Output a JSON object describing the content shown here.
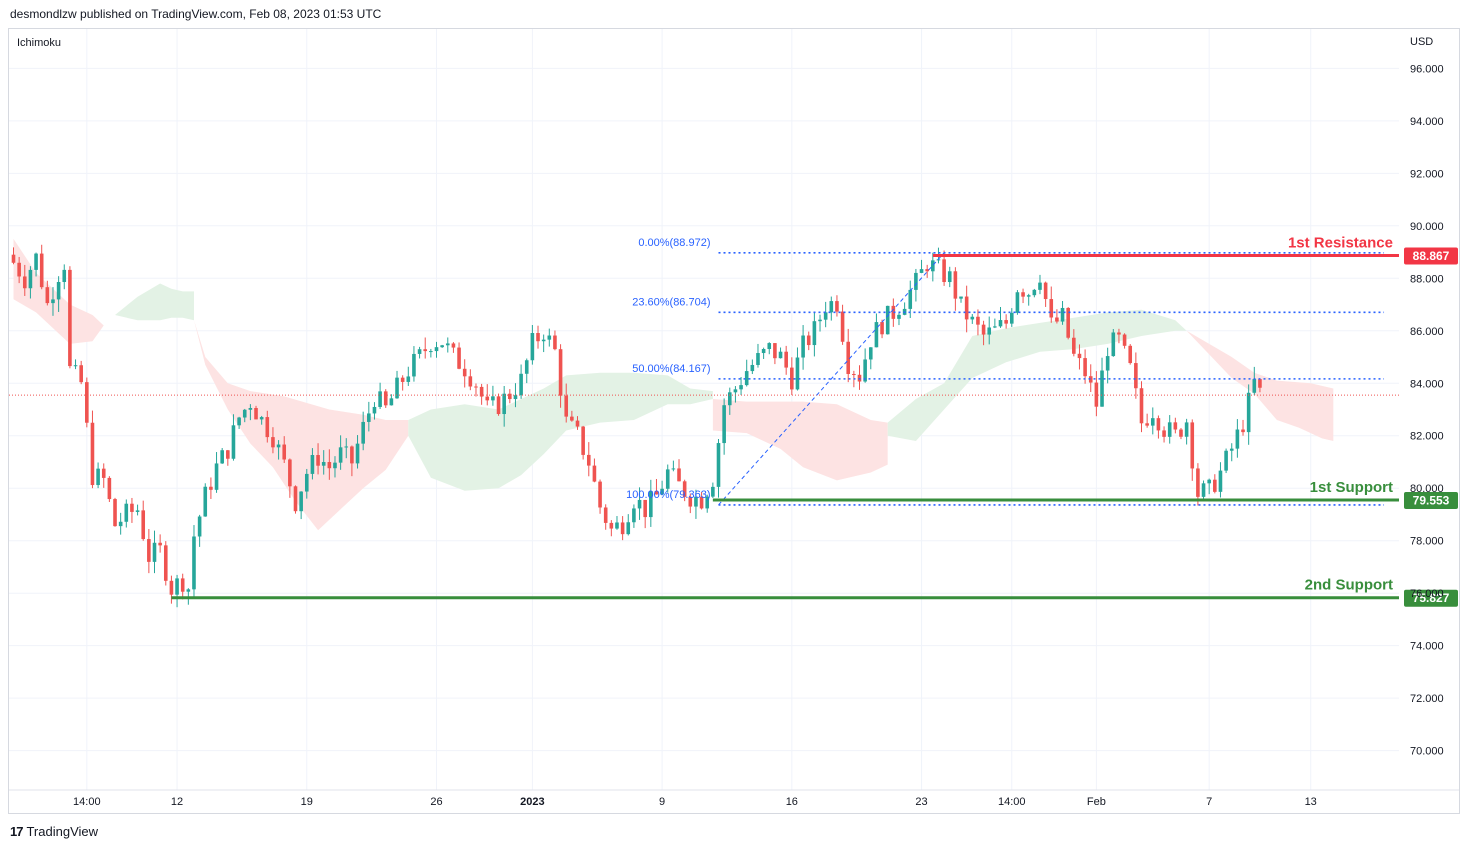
{
  "header": {
    "publish_line": "desmondlzw published on TradingView.com, Feb 08, 2023 01:53 UTC"
  },
  "footer": {
    "logo_glyph": "17",
    "brand": "TradingView"
  },
  "colors": {
    "bull": "#26a69a",
    "bear": "#ef5350",
    "resistance": "#f23645",
    "support": "#388e3c",
    "fib": "#2962ff",
    "cloud_green": "#e3f2e5",
    "cloud_red": "#fde3e3",
    "grid": "#f0f3fa"
  },
  "chart_data": {
    "type": "candlestick",
    "indicator_label": "Ichimoku",
    "currency_label": "USD",
    "y_range": [
      68.5,
      97.5
    ],
    "y_ticks": [
      "70.000",
      "72.000",
      "74.000",
      "76.000",
      "78.000",
      "80.000",
      "82.000",
      "84.000",
      "86.000",
      "88.000",
      "90.000",
      "92.000",
      "94.000",
      "96.000"
    ],
    "x_ticks": [
      {
        "label": "14:00",
        "i": 13,
        "bold": false
      },
      {
        "label": "12",
        "i": 29,
        "bold": false
      },
      {
        "label": "19",
        "i": 52,
        "bold": false
      },
      {
        "label": "26",
        "i": 75,
        "bold": false
      },
      {
        "label": "2023",
        "i": 92,
        "bold": true
      },
      {
        "label": "9",
        "i": 115,
        "bold": false
      },
      {
        "label": "16",
        "i": 138,
        "bold": false
      },
      {
        "label": "23",
        "i": 161,
        "bold": false
      },
      {
        "label": "14:00",
        "i": 177,
        "bold": false
      },
      {
        "label": "Feb",
        "i": 192,
        "bold": false
      },
      {
        "label": "7",
        "i": 212,
        "bold": false
      },
      {
        "label": "13",
        "i": 230,
        "bold": false
      }
    ],
    "anchors": [
      [
        0,
        88.6
      ],
      [
        2,
        88.0
      ],
      [
        4,
        88.8
      ],
      [
        6,
        87.0
      ],
      [
        8,
        88.2
      ],
      [
        9,
        88.6
      ],
      [
        10,
        84.5
      ],
      [
        12,
        84.0
      ],
      [
        14,
        80.5
      ],
      [
        16,
        80.3
      ],
      [
        18,
        78.6
      ],
      [
        20,
        79.0
      ],
      [
        22,
        79.2
      ],
      [
        24,
        77.4
      ],
      [
        26,
        77.6
      ],
      [
        28,
        76.2
      ],
      [
        30,
        76.5
      ],
      [
        31,
        76.2
      ],
      [
        32,
        78.2
      ],
      [
        34,
        79.7
      ],
      [
        36,
        80.8
      ],
      [
        38,
        81.5
      ],
      [
        40,
        82.7
      ],
      [
        42,
        83.3
      ],
      [
        44,
        82.6
      ],
      [
        46,
        82.0
      ],
      [
        48,
        80.9
      ],
      [
        50,
        79.5
      ],
      [
        52,
        80.6
      ],
      [
        54,
        81.2
      ],
      [
        56,
        80.8
      ],
      [
        58,
        81.3
      ],
      [
        60,
        81.0
      ],
      [
        62,
        82.3
      ],
      [
        64,
        83.5
      ],
      [
        66,
        83.0
      ],
      [
        68,
        83.8
      ],
      [
        70,
        84.5
      ],
      [
        72,
        85.0
      ],
      [
        74,
        85.6
      ],
      [
        76,
        85.6
      ],
      [
        78,
        85.0
      ],
      [
        80,
        84.6
      ],
      [
        82,
        84.0
      ],
      [
        84,
        83.0
      ],
      [
        86,
        83.2
      ],
      [
        88,
        83.6
      ],
      [
        90,
        84.1
      ],
      [
        92,
        85.5
      ],
      [
        94,
        86.0
      ],
      [
        96,
        85.2
      ],
      [
        98,
        82.5
      ],
      [
        100,
        82.0
      ],
      [
        102,
        81.0
      ],
      [
        104,
        79.3
      ],
      [
        106,
        78.4
      ],
      [
        108,
        78.7
      ],
      [
        110,
        79.6
      ],
      [
        112,
        79.2
      ],
      [
        114,
        79.7
      ],
      [
        116,
        80.6
      ],
      [
        118,
        80.1
      ],
      [
        120,
        79.7
      ],
      [
        122,
        79.6
      ],
      [
        124,
        80.4
      ],
      [
        126,
        83.2
      ],
      [
        128,
        83.8
      ],
      [
        130,
        84.5
      ],
      [
        132,
        84.9
      ],
      [
        134,
        85.3
      ],
      [
        136,
        85.0
      ],
      [
        138,
        84.2
      ],
      [
        140,
        85.4
      ],
      [
        142,
        86.0
      ],
      [
        144,
        87.0
      ],
      [
        146,
        87.1
      ],
      [
        148,
        84.8
      ],
      [
        150,
        84.3
      ],
      [
        152,
        85.7
      ],
      [
        154,
        86.3
      ],
      [
        156,
        86.7
      ],
      [
        158,
        87.2
      ],
      [
        160,
        87.8
      ],
      [
        162,
        88.6
      ],
      [
        164,
        88.3
      ],
      [
        166,
        88.0
      ],
      [
        168,
        86.9
      ],
      [
        170,
        86.3
      ],
      [
        172,
        85.8
      ],
      [
        174,
        86.0
      ],
      [
        176,
        86.3
      ],
      [
        178,
        87.7
      ],
      [
        180,
        87.5
      ],
      [
        182,
        88.2
      ],
      [
        184,
        86.2
      ],
      [
        186,
        86.5
      ],
      [
        188,
        85.0
      ],
      [
        190,
        84.4
      ],
      [
        192,
        83.2
      ],
      [
        194,
        85.4
      ],
      [
        196,
        85.6
      ],
      [
        198,
        84.5
      ],
      [
        200,
        82.5
      ],
      [
        202,
        83.0
      ],
      [
        204,
        82.3
      ],
      [
        206,
        82.0
      ],
      [
        208,
        82.6
      ],
      [
        210,
        79.8
      ],
      [
        212,
        79.9
      ],
      [
        214,
        80.6
      ],
      [
        216,
        81.5
      ],
      [
        218,
        82.5
      ],
      [
        220,
        84.0
      ],
      [
        221,
        83.6
      ]
    ],
    "candle_count": 222,
    "price_line": 83.55,
    "ichimoku_cloud": [
      {
        "color": "red",
        "top": [
          [
            0,
            89.5
          ],
          [
            4,
            88.2
          ],
          [
            8,
            87.4
          ],
          [
            10,
            87.0
          ],
          [
            14,
            86.6
          ],
          [
            16,
            86.2
          ]
        ],
        "bot": [
          [
            0,
            87.2
          ],
          [
            4,
            86.7
          ],
          [
            8,
            85.9
          ],
          [
            10,
            85.5
          ],
          [
            14,
            85.6
          ],
          [
            16,
            86.2
          ]
        ]
      },
      {
        "color": "green",
        "top": [
          [
            18,
            86.6
          ],
          [
            22,
            87.3
          ],
          [
            26,
            87.8
          ],
          [
            28,
            87.6
          ],
          [
            30,
            87.5
          ],
          [
            32,
            87.5
          ]
        ],
        "bot": [
          [
            18,
            86.6
          ],
          [
            22,
            86.4
          ],
          [
            26,
            86.4
          ],
          [
            28,
            86.5
          ],
          [
            30,
            86.5
          ],
          [
            32,
            86.4
          ]
        ]
      },
      {
        "color": "red",
        "top": [
          [
            32,
            86.4
          ],
          [
            34,
            85.0
          ],
          [
            38,
            84.0
          ],
          [
            42,
            83.7
          ],
          [
            48,
            83.5
          ],
          [
            56,
            83.0
          ],
          [
            62,
            82.8
          ],
          [
            66,
            82.6
          ],
          [
            70,
            82.6
          ]
        ],
        "bot": [
          [
            32,
            86.4
          ],
          [
            34,
            84.7
          ],
          [
            38,
            83.0
          ],
          [
            42,
            81.7
          ],
          [
            46,
            80.8
          ],
          [
            50,
            79.5
          ],
          [
            54,
            78.4
          ],
          [
            58,
            79.2
          ],
          [
            62,
            80.0
          ],
          [
            66,
            80.7
          ],
          [
            70,
            82.0
          ]
        ]
      },
      {
        "color": "green",
        "top": [
          [
            70,
            82.6
          ],
          [
            74,
            83.0
          ],
          [
            80,
            83.2
          ],
          [
            86,
            83.0
          ],
          [
            90,
            83.4
          ],
          [
            94,
            83.8
          ],
          [
            98,
            84.3
          ],
          [
            104,
            84.4
          ],
          [
            110,
            84.4
          ],
          [
            116,
            84.3
          ],
          [
            120,
            83.8
          ],
          [
            124,
            83.7
          ]
        ],
        "bot": [
          [
            70,
            82.0
          ],
          [
            74,
            80.4
          ],
          [
            80,
            79.9
          ],
          [
            86,
            80.0
          ],
          [
            90,
            80.5
          ],
          [
            94,
            81.3
          ],
          [
            98,
            82.2
          ],
          [
            104,
            82.5
          ],
          [
            110,
            82.6
          ],
          [
            116,
            83.2
          ],
          [
            120,
            83.2
          ],
          [
            124,
            83.4
          ]
        ]
      },
      {
        "color": "red",
        "top": [
          [
            124,
            83.4
          ],
          [
            130,
            83.3
          ],
          [
            136,
            83.3
          ],
          [
            140,
            83.3
          ],
          [
            146,
            83.2
          ],
          [
            152,
            82.6
          ],
          [
            155,
            82.5
          ]
        ],
        "bot": [
          [
            124,
            82.2
          ],
          [
            130,
            82.1
          ],
          [
            136,
            81.5
          ],
          [
            140,
            80.8
          ],
          [
            146,
            80.3
          ],
          [
            152,
            80.6
          ],
          [
            155,
            80.9
          ]
        ]
      },
      {
        "color": "green",
        "top": [
          [
            155,
            82.5
          ],
          [
            160,
            83.4
          ],
          [
            165,
            84.0
          ],
          [
            170,
            85.8
          ],
          [
            176,
            86.1
          ],
          [
            182,
            86.3
          ],
          [
            188,
            86.5
          ],
          [
            194,
            86.7
          ],
          [
            200,
            86.8
          ],
          [
            206,
            86.4
          ],
          [
            208,
            86.0
          ]
        ],
        "bot": [
          [
            155,
            82.0
          ],
          [
            160,
            81.8
          ],
          [
            165,
            83.0
          ],
          [
            170,
            84.2
          ],
          [
            176,
            84.8
          ],
          [
            182,
            85.2
          ],
          [
            188,
            85.3
          ],
          [
            194,
            85.5
          ],
          [
            200,
            85.8
          ],
          [
            206,
            86.0
          ],
          [
            208,
            86.0
          ]
        ]
      },
      {
        "color": "red",
        "top": [
          [
            208,
            86.0
          ],
          [
            212,
            85.5
          ],
          [
            216,
            85.0
          ],
          [
            220,
            84.4
          ],
          [
            224,
            84.1
          ],
          [
            230,
            84.0
          ],
          [
            234,
            83.8
          ]
        ],
        "bot": [
          [
            208,
            86.0
          ],
          [
            212,
            85.1
          ],
          [
            216,
            84.2
          ],
          [
            220,
            83.6
          ],
          [
            224,
            82.6
          ],
          [
            228,
            82.3
          ],
          [
            232,
            81.9
          ],
          [
            234,
            81.8
          ]
        ]
      }
    ],
    "fibonacci": {
      "levels": [
        {
          "label": "0.00%(88.972)",
          "price": 88.972
        },
        {
          "label": "23.60%(86.704)",
          "price": 86.704
        },
        {
          "label": "50.00%(84.167)",
          "price": 84.167
        },
        {
          "label": "100.00%(79.363)",
          "price": 79.363
        }
      ],
      "start_i": 125,
      "end_i": 243,
      "trend_from": {
        "i": 125,
        "price": 79.363
      },
      "trend_to": {
        "i": 165,
        "price": 88.972
      }
    },
    "levels": [
      {
        "name": "1st Resistance",
        "price": 88.867,
        "value_label": "88.867",
        "color": "resistance",
        "start_i": 163
      },
      {
        "name": "1st Support",
        "price": 79.553,
        "value_label": "79.553",
        "color": "support",
        "start_i": 124
      },
      {
        "name": "2nd Support",
        "price": 75.827,
        "value_label": "75.827",
        "color": "support",
        "start_i": 28
      }
    ]
  }
}
